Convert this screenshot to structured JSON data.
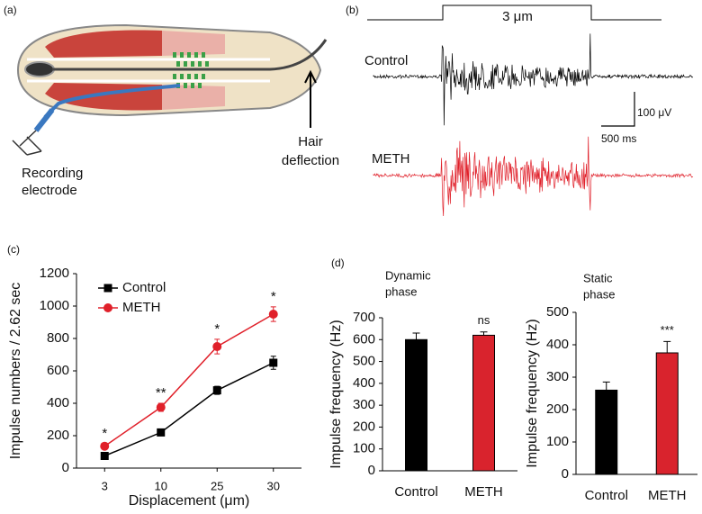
{
  "panel_a": {
    "label": "(a)",
    "recording_label": [
      "Recording",
      "electrode"
    ],
    "hair_label": [
      "Hair",
      "deflection"
    ]
  },
  "panel_b": {
    "label": "(b)",
    "stimulus": "3 μm",
    "traces": [
      {
        "name": "Control",
        "color": "#000000"
      },
      {
        "name": "METH",
        "color": "#e0202a"
      }
    ],
    "scale_v": "100 μV",
    "scale_t": "500 ms"
  },
  "chart_data": [
    {
      "type": "line",
      "panel": "(c)",
      "xlabel": "Displacement (μm)",
      "ylabel": "Impulse numbers / 2.62 sec",
      "categories": [
        "3",
        "10",
        "25",
        "30"
      ],
      "series": [
        {
          "name": "Control",
          "color": "#000000",
          "marker": "square",
          "values": [
            75,
            220,
            480,
            650
          ],
          "errors": [
            15,
            20,
            25,
            40
          ]
        },
        {
          "name": "METH",
          "color": "#e0202a",
          "marker": "circle",
          "values": [
            135,
            375,
            750,
            950
          ],
          "errors": [
            15,
            25,
            45,
            45
          ],
          "annotations": [
            "*",
            "**",
            "*",
            "*"
          ]
        }
      ],
      "ylim": [
        0,
        1200
      ],
      "yticks": [
        0,
        200,
        400,
        600,
        800,
        1000,
        1200
      ],
      "legend": "upper-left"
    },
    {
      "type": "bar",
      "panel": "(d)",
      "title": [
        "Dynamic",
        "phase"
      ],
      "ylabel": "Impulse frequency (Hz)",
      "categories": [
        "Control",
        "METH"
      ],
      "values": [
        600,
        620
      ],
      "errors": [
        30,
        15
      ],
      "colors": [
        "#000000",
        "#d9232d"
      ],
      "annotations": [
        null,
        "ns"
      ],
      "ylim": [
        0,
        700
      ],
      "yticks": [
        0,
        100,
        200,
        300,
        400,
        500,
        600,
        700
      ]
    },
    {
      "type": "bar",
      "title": [
        "Static",
        "phase"
      ],
      "ylabel": "Impulse frequency (Hz)",
      "categories": [
        "Control",
        "METH"
      ],
      "values": [
        260,
        375
      ],
      "errors": [
        25,
        35
      ],
      "colors": [
        "#000000",
        "#d9232d"
      ],
      "annotations": [
        null,
        "***"
      ],
      "ylim": [
        0,
        500
      ],
      "yticks": [
        0,
        100,
        200,
        300,
        400,
        500
      ]
    }
  ]
}
